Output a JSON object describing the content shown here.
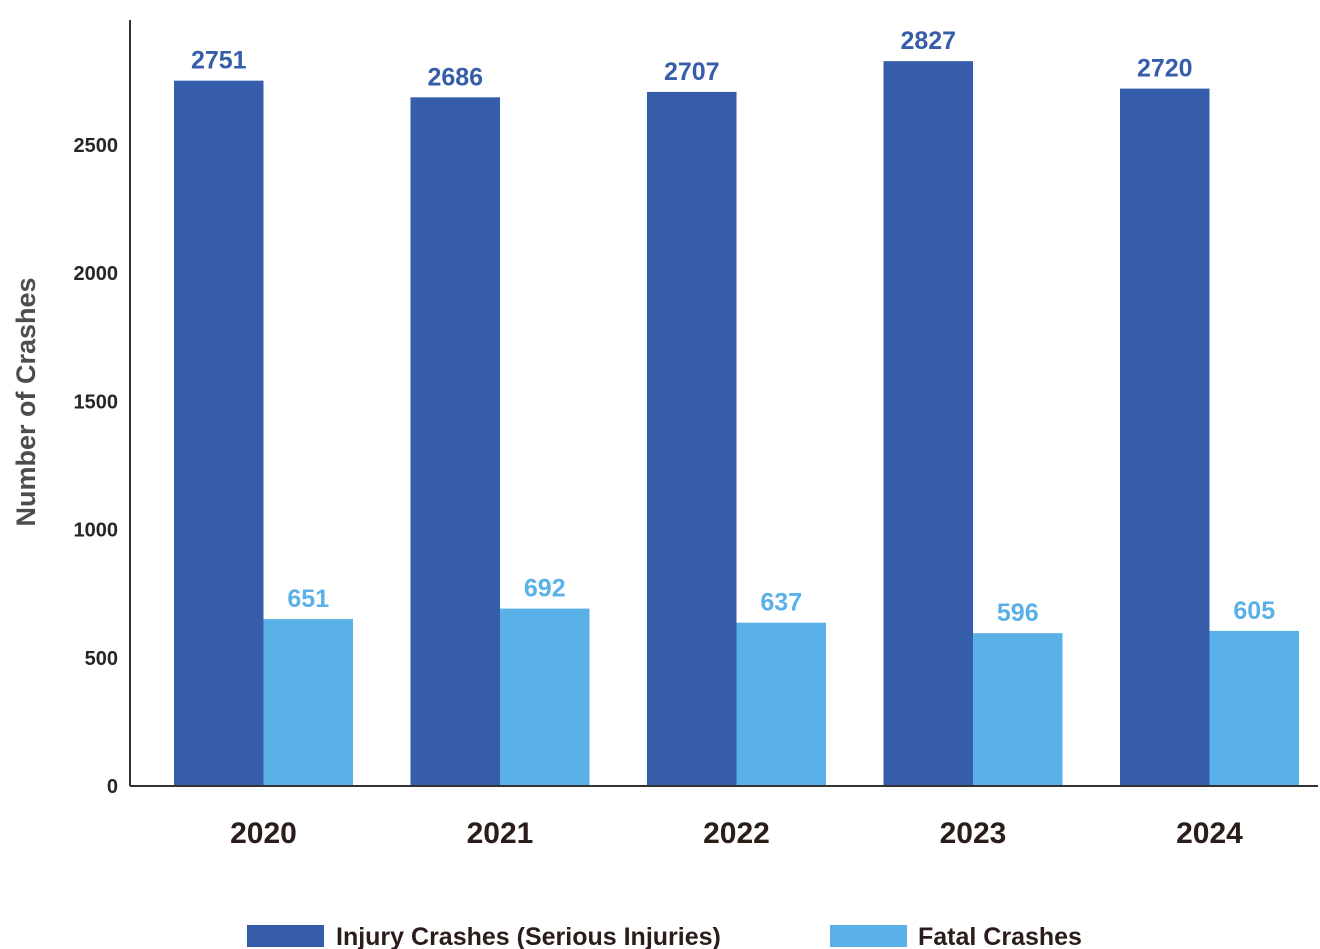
{
  "chart_data": {
    "type": "bar",
    "title": "",
    "xlabel": "",
    "ylabel": "Number of Crashes",
    "categories": [
      "2020",
      "2021",
      "2022",
      "2023",
      "2024"
    ],
    "series": [
      {
        "name": "Injury Crashes (Serious Injuries)",
        "values": [
          2751,
          2686,
          2707,
          2827,
          2720
        ],
        "color": "#365da9",
        "label_color": "#365da9"
      },
      {
        "name": "Fatal Crashes",
        "values": [
          651,
          692,
          637,
          596,
          605
        ],
        "color": "#5ab1e8",
        "label_color": "#5ab1e8"
      }
    ],
    "yticks": [
      0,
      500,
      1000,
      1500,
      2000,
      2500
    ],
    "ylim": [
      0,
      2900
    ],
    "grid": false,
    "legend_position": "bottom"
  }
}
